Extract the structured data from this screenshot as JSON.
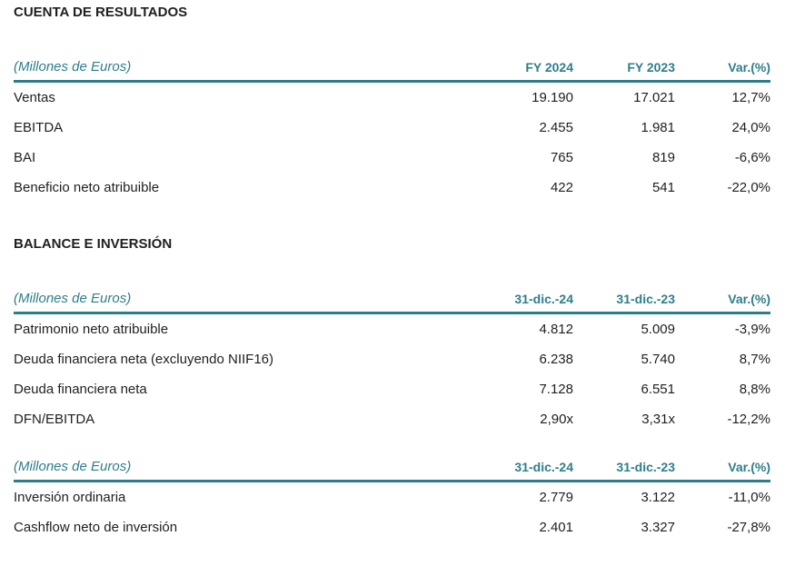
{
  "colors": {
    "accent_teal": "#2e7e8a",
    "text_dark": "#1f1f1f",
    "background": "#ffffff"
  },
  "section_income": {
    "title": "CUENTA DE RESULTADOS",
    "table": {
      "unit_label": "(Millones de Euros)",
      "col1": "FY 2024",
      "col2": "FY 2023",
      "col3": "Var.(%)",
      "rows": [
        {
          "label": "Ventas",
          "v1": "19.190",
          "v2": "17.021",
          "v3": "12,7%"
        },
        {
          "label": "EBITDA",
          "v1": "2.455",
          "v2": "1.981",
          "v3": "24,0%"
        },
        {
          "label": "BAI",
          "v1": "765",
          "v2": "819",
          "v3": "-6,6%"
        },
        {
          "label": "Beneficio neto atribuible",
          "v1": "422",
          "v2": "541",
          "v3": "-22,0%"
        }
      ]
    }
  },
  "section_balance": {
    "title": "BALANCE E INVERSIÓN",
    "table_balance": {
      "unit_label": "(Millones de Euros)",
      "col1": "31-dic.-24",
      "col2": "31-dic.-23",
      "col3": "Var.(%)",
      "rows": [
        {
          "label": "Patrimonio neto atribuible",
          "v1": "4.812",
          "v2": "5.009",
          "v3": "-3,9%"
        },
        {
          "label": "Deuda financiera neta (excluyendo NIIF16)",
          "v1": "6.238",
          "v2": "5.740",
          "v3": "8,7%"
        },
        {
          "label": "Deuda financiera neta",
          "v1": "7.128",
          "v2": "6.551",
          "v3": "8,8%"
        },
        {
          "label": "DFN/EBITDA",
          "v1": "2,90x",
          "v2": "3,31x",
          "v3": "-12,2%"
        }
      ]
    },
    "table_investment": {
      "unit_label": "(Millones de Euros)",
      "col1": "31-dic.-24",
      "col2": "31-dic.-23",
      "col3": "Var.(%)",
      "rows": [
        {
          "label": "Inversión ordinaria",
          "v1": "2.779",
          "v2": "3.122",
          "v3": "-11,0%"
        },
        {
          "label": "Cashflow neto de inversión",
          "v1": "2.401",
          "v2": "3.327",
          "v3": "-27,8%"
        }
      ]
    }
  }
}
